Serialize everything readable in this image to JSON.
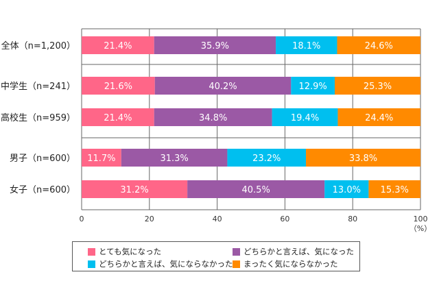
{
  "chart_data": {
    "type": "bar",
    "orientation": "horizontal",
    "stacked": true,
    "categories": [
      "全体（n=1,200）",
      "中学生（n=241）",
      "高校生（n=959）",
      "男子（n=600）",
      "女子（n=600）"
    ],
    "series": [
      {
        "name": "とても気になった",
        "color": "#ff6688",
        "values": [
          21.4,
          21.6,
          21.4,
          11.7,
          31.2
        ],
        "labels": [
          "21.4%",
          "21.6%",
          "21.4%",
          "11.7%",
          "31.2%"
        ]
      },
      {
        "name": "どちらかと言えば、気になった",
        "color": "#9b59a5",
        "values": [
          35.9,
          40.2,
          34.8,
          31.3,
          40.5
        ],
        "labels": [
          "35.9%",
          "40.2%",
          "34.8%",
          "31.3%",
          "40.5%"
        ]
      },
      {
        "name": "どちらかと言えば、気にならなかった",
        "color": "#00bfef",
        "values": [
          18.1,
          12.9,
          19.4,
          23.2,
          13.0
        ],
        "labels": [
          "18.1%",
          "12.9%",
          "19.4%",
          "23.2%",
          "13.0%"
        ]
      },
      {
        "name": "まったく気にならなかった",
        "color": "#ff8a00",
        "values": [
          24.6,
          25.3,
          24.4,
          33.8,
          15.3
        ],
        "labels": [
          "24.6%",
          "25.3%",
          "24.4%",
          "33.8%",
          "15.3%"
        ]
      }
    ],
    "xlim": [
      0,
      100
    ],
    "xticks": [
      "0",
      "20",
      "40",
      "60",
      "80",
      "100"
    ],
    "xunit": "（%）",
    "grid": "vertical",
    "legend_position": "bottom"
  }
}
